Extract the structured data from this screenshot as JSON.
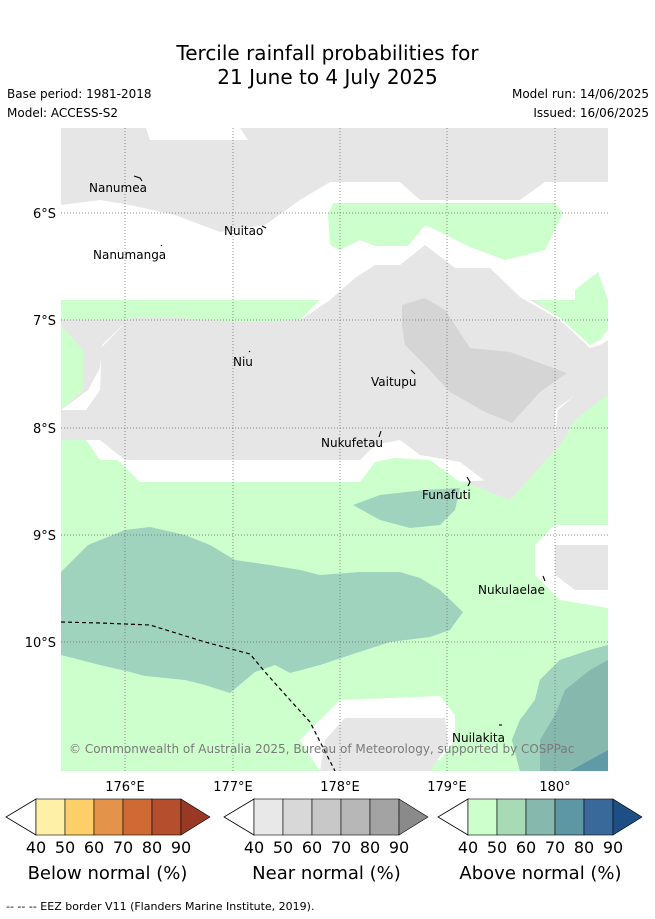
{
  "header": {
    "title_line1": "Tercile rainfall probabilities for",
    "title_line2": "21 June to 4 July 2025",
    "base_period": "Base period: 1981-2018",
    "model": "Model: ACCESS-S2",
    "model_run": "Model run: 14/06/2025",
    "issued": "Issued: 16/06/2025"
  },
  "map": {
    "lat_labels": [
      "6°S",
      "7°S",
      "8°S",
      "9°S",
      "10°S"
    ],
    "lon_labels": [
      "176°E",
      "177°E",
      "178°E",
      "179°E",
      "180°"
    ],
    "places": [
      "Nanumea",
      "Nuitao",
      "Nanumanga",
      "Niu",
      "Vaitupu",
      "Nukufetau",
      "Funafuti",
      "Nukulaelae",
      "Nuilakita"
    ],
    "copyright": "© Commonwealth of Australia 2025, Bureau of Meteorology, supported by COSPPac",
    "colors": {
      "near_40": "#e6e6e6",
      "near_50": "#d5d5d5",
      "above_40": "#ccffcc",
      "above_50": "#9fd3bd",
      "above_60": "#86b8ae",
      "above_70": "#5f9aa6"
    }
  },
  "legend": {
    "ticks": [
      "40",
      "50",
      "60",
      "70",
      "80",
      "90"
    ],
    "below": {
      "title": "Below normal (%)",
      "colors": [
        "#fff0a8",
        "#fdcf68",
        "#e3944a",
        "#d06a35",
        "#b54e2d",
        "#9a3826"
      ]
    },
    "near": {
      "title": "Near normal (%)",
      "colors": [
        "#e8e8e8",
        "#d8d8d8",
        "#c8c8c8",
        "#b7b7b7",
        "#a3a3a3",
        "#8a8a8a"
      ]
    },
    "above": {
      "title": "Above normal (%)",
      "colors": [
        "#ccffcc",
        "#a8dab6",
        "#86b8ae",
        "#5d97a3",
        "#39699a",
        "#1d4f86"
      ]
    }
  },
  "footnote": "--  --  -- EEZ border V11 (Flanders Marine Institute, 2019)."
}
